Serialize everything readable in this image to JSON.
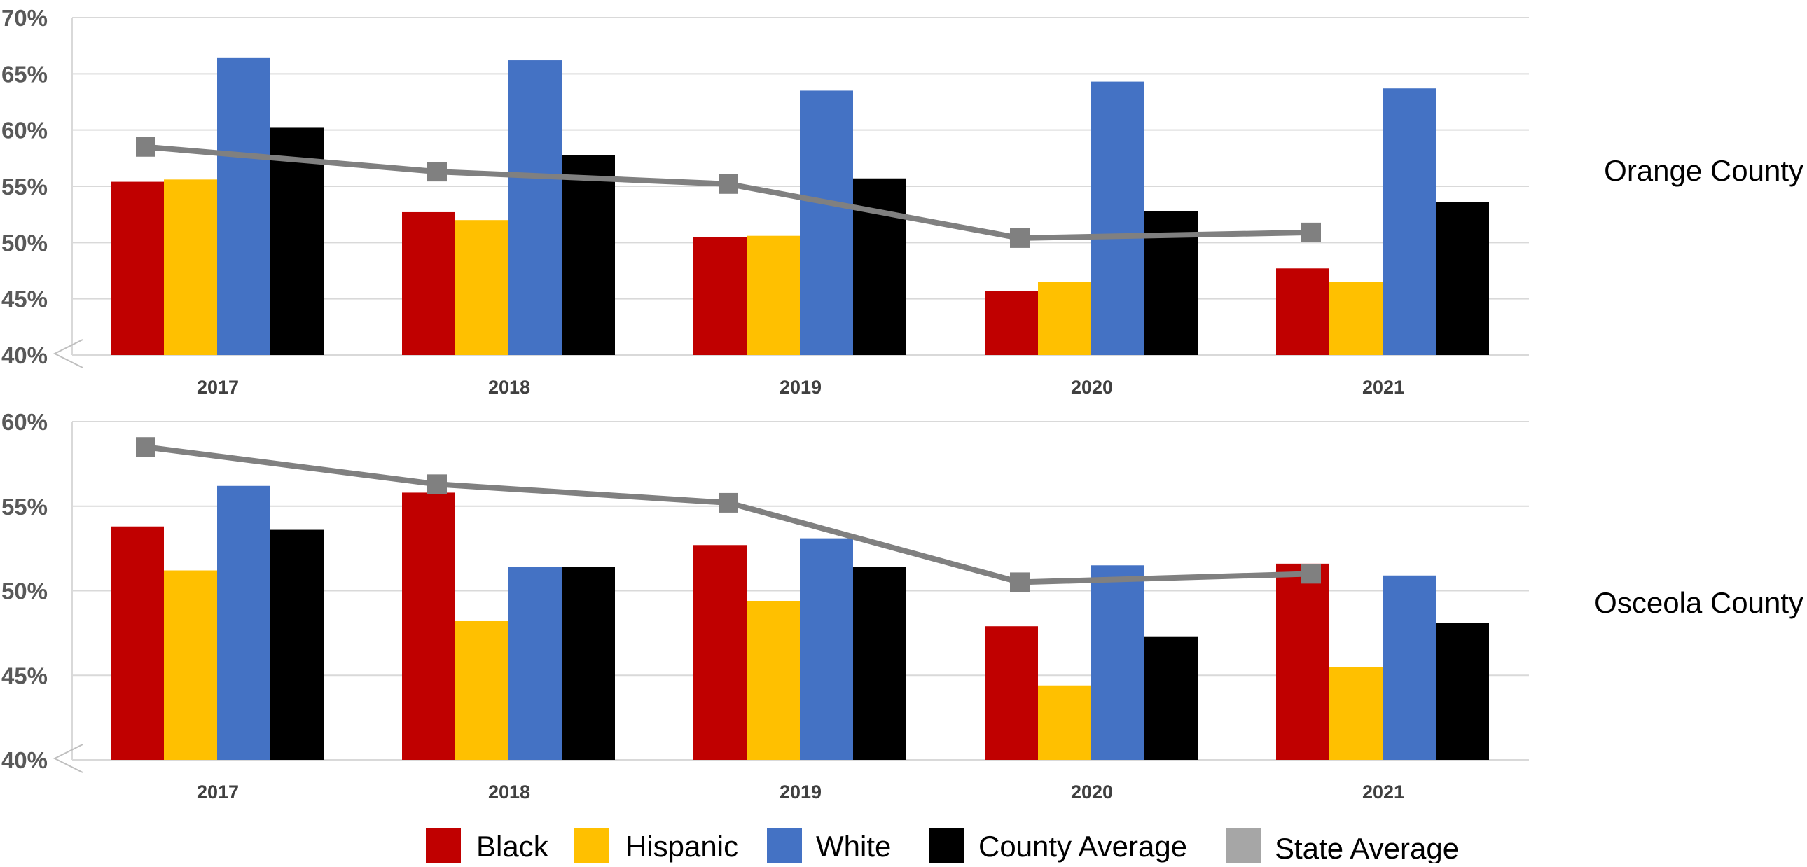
{
  "chart_data": [
    {
      "type": "bar",
      "panel_label": "Orange County",
      "categories": [
        "2017",
        "2018",
        "2019",
        "2020",
        "2021"
      ],
      "ylim": [
        40,
        70
      ],
      "yticks": [
        40,
        45,
        50,
        55,
        60,
        65,
        70
      ],
      "ytick_labels": [
        "40%",
        "45%",
        "50%",
        "55%",
        "60%",
        "65%",
        "70%"
      ],
      "axis_break": true,
      "grid": true,
      "series": [
        {
          "name": "Black",
          "color": "#C00000",
          "values": [
            55.4,
            52.7,
            50.5,
            45.7,
            47.7
          ]
        },
        {
          "name": "Hispanic",
          "color": "#FFC000",
          "values": [
            55.6,
            52.0,
            50.6,
            46.5,
            46.5
          ]
        },
        {
          "name": "White",
          "color": "#4472C4",
          "values": [
            66.4,
            66.2,
            63.5,
            64.3,
            63.7
          ]
        },
        {
          "name": "County Average",
          "color": "#000000",
          "values": [
            60.2,
            57.8,
            55.7,
            52.8,
            53.6
          ]
        }
      ],
      "line_series": {
        "name": "State Average",
        "color": "#808080",
        "values": [
          58.5,
          56.3,
          55.2,
          50.4,
          50.9
        ]
      }
    },
    {
      "type": "bar",
      "panel_label": "Osceola County",
      "categories": [
        "2017",
        "2018",
        "2019",
        "2020",
        "2021"
      ],
      "ylim": [
        40,
        60
      ],
      "yticks": [
        40,
        45,
        50,
        55,
        60
      ],
      "ytick_labels": [
        "40%",
        "45%",
        "50%",
        "55%",
        "60%"
      ],
      "axis_break": true,
      "grid": true,
      "series": [
        {
          "name": "Black",
          "color": "#C00000",
          "values": [
            53.8,
            55.8,
            52.7,
            47.9,
            51.6
          ]
        },
        {
          "name": "Hispanic",
          "color": "#FFC000",
          "values": [
            51.2,
            48.2,
            49.4,
            44.4,
            45.5
          ]
        },
        {
          "name": "White",
          "color": "#4472C4",
          "values": [
            56.2,
            51.4,
            53.1,
            51.5,
            50.9
          ]
        },
        {
          "name": "County Average",
          "color": "#000000",
          "values": [
            53.6,
            51.4,
            51.4,
            47.3,
            48.1
          ]
        }
      ],
      "line_series": {
        "name": "State Average",
        "color": "#808080",
        "values": [
          58.5,
          56.3,
          55.2,
          50.5,
          51.0
        ]
      }
    }
  ],
  "legend": {
    "placement": "bottom",
    "items": [
      {
        "label": "Black",
        "color": "#C00000"
      },
      {
        "label": "Hispanic",
        "color": "#FFC000"
      },
      {
        "label": "White",
        "color": "#4472C4"
      },
      {
        "label": "County Average",
        "color": "#000000"
      },
      {
        "label": "State Average",
        "color": "#A6A6A6"
      }
    ]
  }
}
